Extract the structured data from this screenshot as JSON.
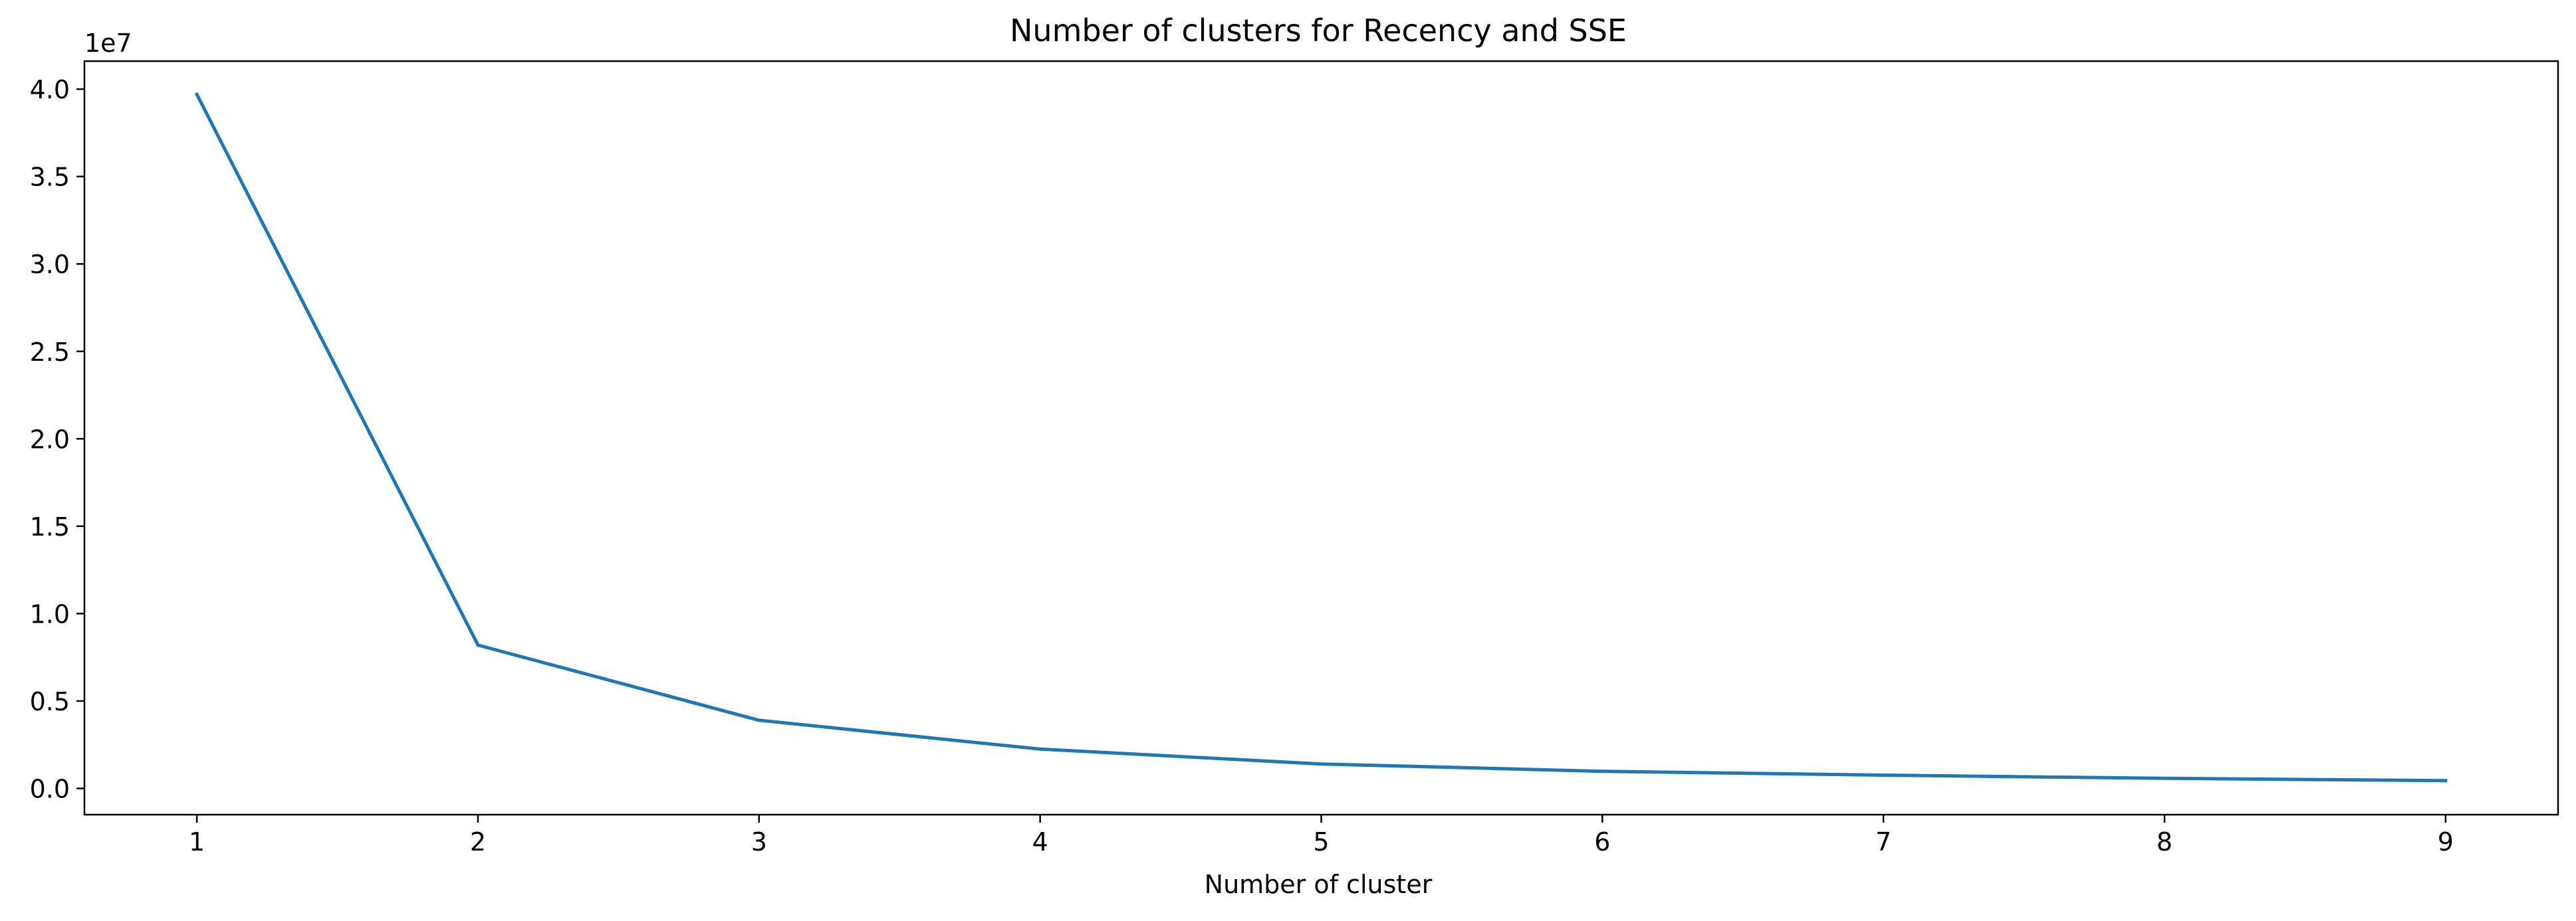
{
  "chart_data": {
    "type": "line",
    "title": "Number of clusters for Recency and SSE",
    "xlabel": "Number of cluster",
    "ylabel": "",
    "y_offset_label": "1e7",
    "x": [
      1,
      2,
      3,
      4,
      5,
      6,
      7,
      8,
      9
    ],
    "x_ticks": [
      1,
      2,
      3,
      4,
      5,
      6,
      7,
      8,
      9
    ],
    "x_tick_labels": [
      "1",
      "2",
      "3",
      "4",
      "5",
      "6",
      "7",
      "8",
      "9"
    ],
    "y_ticks": [
      0,
      5000000,
      10000000,
      15000000,
      20000000,
      25000000,
      30000000,
      35000000,
      40000000
    ],
    "y_tick_labels": [
      "0.0",
      "0.5",
      "1.0",
      "1.5",
      "2.0",
      "2.5",
      "3.0",
      "3.5",
      "4.0"
    ],
    "xlim": [
      0.6,
      9.4
    ],
    "ylim": [
      -1500000,
      41600000
    ],
    "series": [
      {
        "values": [
          39700000,
          8200000,
          3900000,
          2250000,
          1400000,
          980000,
          760000,
          580000,
          450000
        ],
        "color": "#1f77b4"
      }
    ],
    "grid": false,
    "legend": "none"
  }
}
